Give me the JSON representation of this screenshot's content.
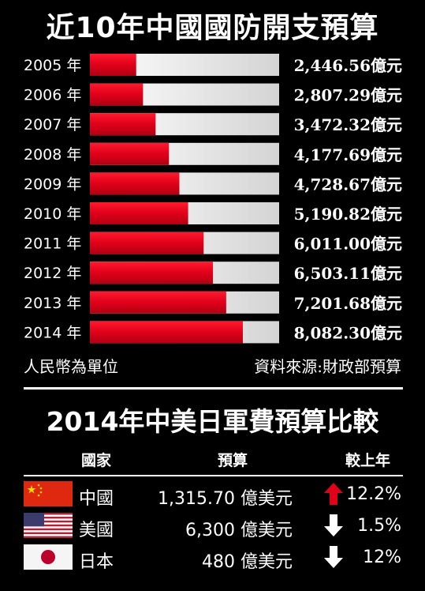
{
  "title": "近10年中國國防開支預算",
  "chart_data": {
    "type": "bar",
    "title": "近10年中國國防開支預算",
    "categories": [
      "2005 年",
      "2006 年",
      "2007 年",
      "2008 年",
      "2009 年",
      "2010 年",
      "2011 年",
      "2012 年",
      "2013 年",
      "2014 年"
    ],
    "values": [
      2446.56,
      2807.29,
      3472.32,
      4177.69,
      4728.67,
      5190.82,
      6011.0,
      6503.11,
      7201.68,
      8082.3
    ],
    "value_labels": [
      "2,446.56億元",
      "2,807.29億元",
      "3,472.32億元",
      "4,177.69億元",
      "4,728.67億元",
      "5,190.82億元",
      "6,011.00億元",
      "6,503.11億元",
      "7,201.68億元",
      "8,082.30億元"
    ],
    "unit": "億元",
    "xlim": [
      0,
      10000
    ],
    "orientation": "horizontal",
    "bar_color": "#e0001a",
    "track_color": "#e8e8e8"
  },
  "footer": {
    "unit_note": "人民幣為單位",
    "source": "資料來源:財政部預算"
  },
  "comparison": {
    "title": "2014年中美日軍費預算比較",
    "headers": {
      "country": "國家",
      "budget": "預算",
      "change": "較上年"
    },
    "rows": [
      {
        "flag": "china-flag-icon",
        "country": "中國",
        "budget": "1,315.70 億美元",
        "direction": "up",
        "change": "12.2%"
      },
      {
        "flag": "usa-flag-icon",
        "country": "美國",
        "budget": "6,300 億美元",
        "direction": "down",
        "change": "1.5%"
      },
      {
        "flag": "japan-flag-icon",
        "country": "日本",
        "budget": "480 億美元",
        "direction": "down",
        "change": "12%"
      }
    ],
    "colors": {
      "up": "#e0001a",
      "down": "#ffffff"
    }
  }
}
